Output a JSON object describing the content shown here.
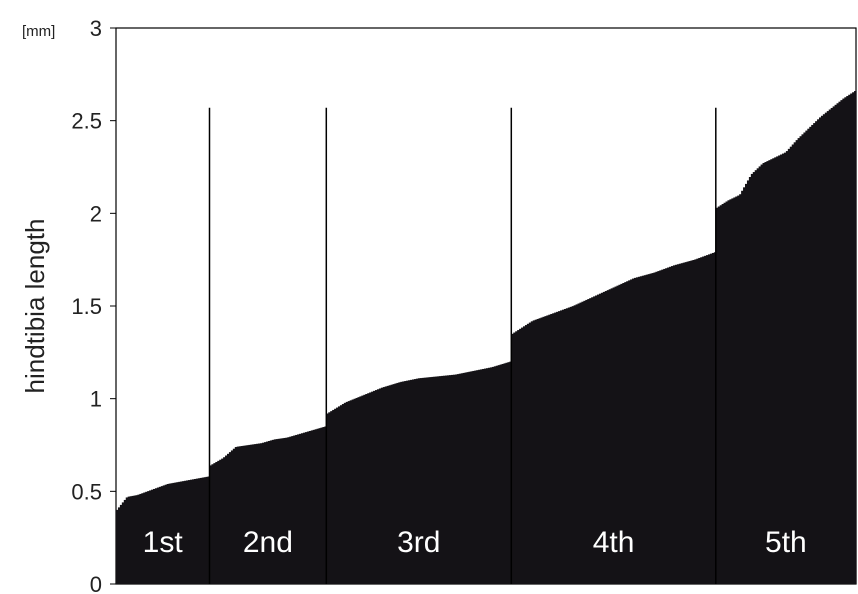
{
  "chart_data": {
    "type": "bar",
    "title": "",
    "xlabel": "",
    "ylabel": "hindtibia length",
    "y_unit": "[mm]",
    "ylim": [
      0,
      3
    ],
    "yticks": [
      "0",
      "0.5",
      "1",
      "1.5",
      "2",
      "2.5",
      "3"
    ],
    "grid": false,
    "legend": "none",
    "bar_color": "#141216",
    "separator_color": "#000000",
    "sorted_ascending": true,
    "groups": [
      {
        "label": "1st",
        "count": 48,
        "values_range": [
          0.4,
          0.58
        ],
        "key_values": [
          0.4,
          0.47,
          0.48,
          0.5,
          0.52,
          0.54,
          0.55,
          0.56,
          0.57,
          0.58
        ]
      },
      {
        "label": "2nd",
        "count": 60,
        "values_range": [
          0.64,
          0.85
        ],
        "key_values": [
          0.64,
          0.68,
          0.74,
          0.75,
          0.76,
          0.78,
          0.79,
          0.81,
          0.83,
          0.85
        ]
      },
      {
        "label": "3rd",
        "count": 95,
        "values_range": [
          0.92,
          1.2
        ],
        "key_values": [
          0.92,
          0.98,
          1.02,
          1.06,
          1.09,
          1.11,
          1.12,
          1.13,
          1.15,
          1.17,
          1.2
        ]
      },
      {
        "label": "4th",
        "count": 105,
        "values_range": [
          1.35,
          1.79
        ],
        "key_values": [
          1.35,
          1.42,
          1.46,
          1.5,
          1.55,
          1.6,
          1.65,
          1.68,
          1.72,
          1.75,
          1.79
        ]
      },
      {
        "label": "5th",
        "count": 72,
        "values_range": [
          2.03,
          2.66
        ],
        "key_values": [
          2.03,
          2.07,
          2.1,
          2.21,
          2.27,
          2.3,
          2.33,
          2.4,
          2.46,
          2.52,
          2.57,
          2.62,
          2.66
        ]
      }
    ]
  }
}
